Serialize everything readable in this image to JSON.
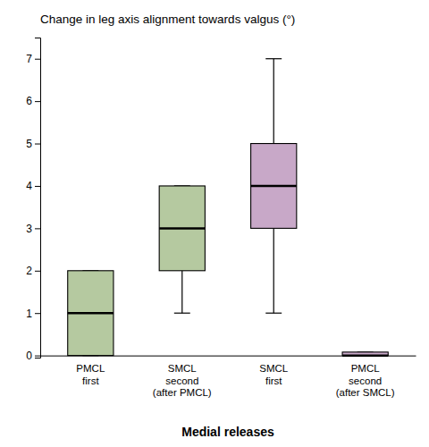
{
  "chart_data": {
    "type": "box",
    "title": "Change in leg axis alignment towards valgus (°)",
    "xlabel": "Medial releases",
    "categories": [
      "PMCL\nfirst",
      "SMCL\nsecond\n(after PMCL)",
      "SMCL\nfirst",
      "PMCL\nsecond\n(after SMCL)"
    ],
    "whisker_low": [
      0,
      1,
      1,
      0
    ],
    "q1": [
      0,
      2,
      3,
      0
    ],
    "median": [
      1,
      3,
      4,
      0
    ],
    "q3": [
      2,
      4,
      5,
      0.08
    ],
    "whisker_high": [
      2,
      4,
      7,
      0.08
    ],
    "colors": [
      "#b5c9a0",
      "#b5c9a0",
      "#c8a8c8",
      "#c8a8c8"
    ],
    "ylim": [
      -0.05,
      7.5
    ],
    "yticks": [
      0,
      1,
      2,
      3,
      4,
      5,
      6,
      7
    ]
  }
}
